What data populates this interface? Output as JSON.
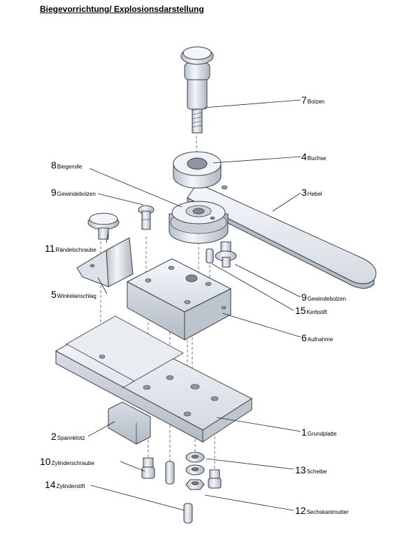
{
  "title": "Biegevorrichtung/ Explosionsdarstellung",
  "colors": {
    "metal_light": "#eef1f5",
    "metal_mid": "#d3d9e1",
    "metal_dark": "#a9b1bc",
    "outline": "#3a3f46"
  },
  "parts": [
    {
      "key": "bolzen",
      "number": "7",
      "name": "Bolzen"
    },
    {
      "key": "buchse",
      "number": "4",
      "name": "Buchse"
    },
    {
      "key": "biegerolle",
      "number": "8",
      "name": "Biegerolle"
    },
    {
      "key": "hebel",
      "number": "3",
      "name": "Hebel"
    },
    {
      "key": "gewindebolzen-top",
      "number": "9",
      "name": "Gewindebolzen"
    },
    {
      "key": "raendelschraube",
      "number": "11",
      "name": "Rändelschraube"
    },
    {
      "key": "winkelanschlag",
      "number": "5",
      "name": "Winkelanschlag"
    },
    {
      "key": "gewindebolzen-right",
      "number": "9",
      "name": "Gewindebolzen"
    },
    {
      "key": "kerbstift",
      "number": "15",
      "name": "Kerbstift"
    },
    {
      "key": "aufnahme",
      "number": "6",
      "name": "Aufnahme"
    },
    {
      "key": "grundplatte",
      "number": "1",
      "name": "Grundplatte"
    },
    {
      "key": "spannklotz",
      "number": "2",
      "name": "Spannklotz"
    },
    {
      "key": "zylinderschraube",
      "number": "10",
      "name": "Zylinderschraube"
    },
    {
      "key": "scheibe",
      "number": "13",
      "name": "Scheibe"
    },
    {
      "key": "zylinderstift",
      "number": "14",
      "name": "Zylinderstift"
    },
    {
      "key": "sechskantmutter",
      "number": "12",
      "name": "Sechskantmutter"
    }
  ]
}
